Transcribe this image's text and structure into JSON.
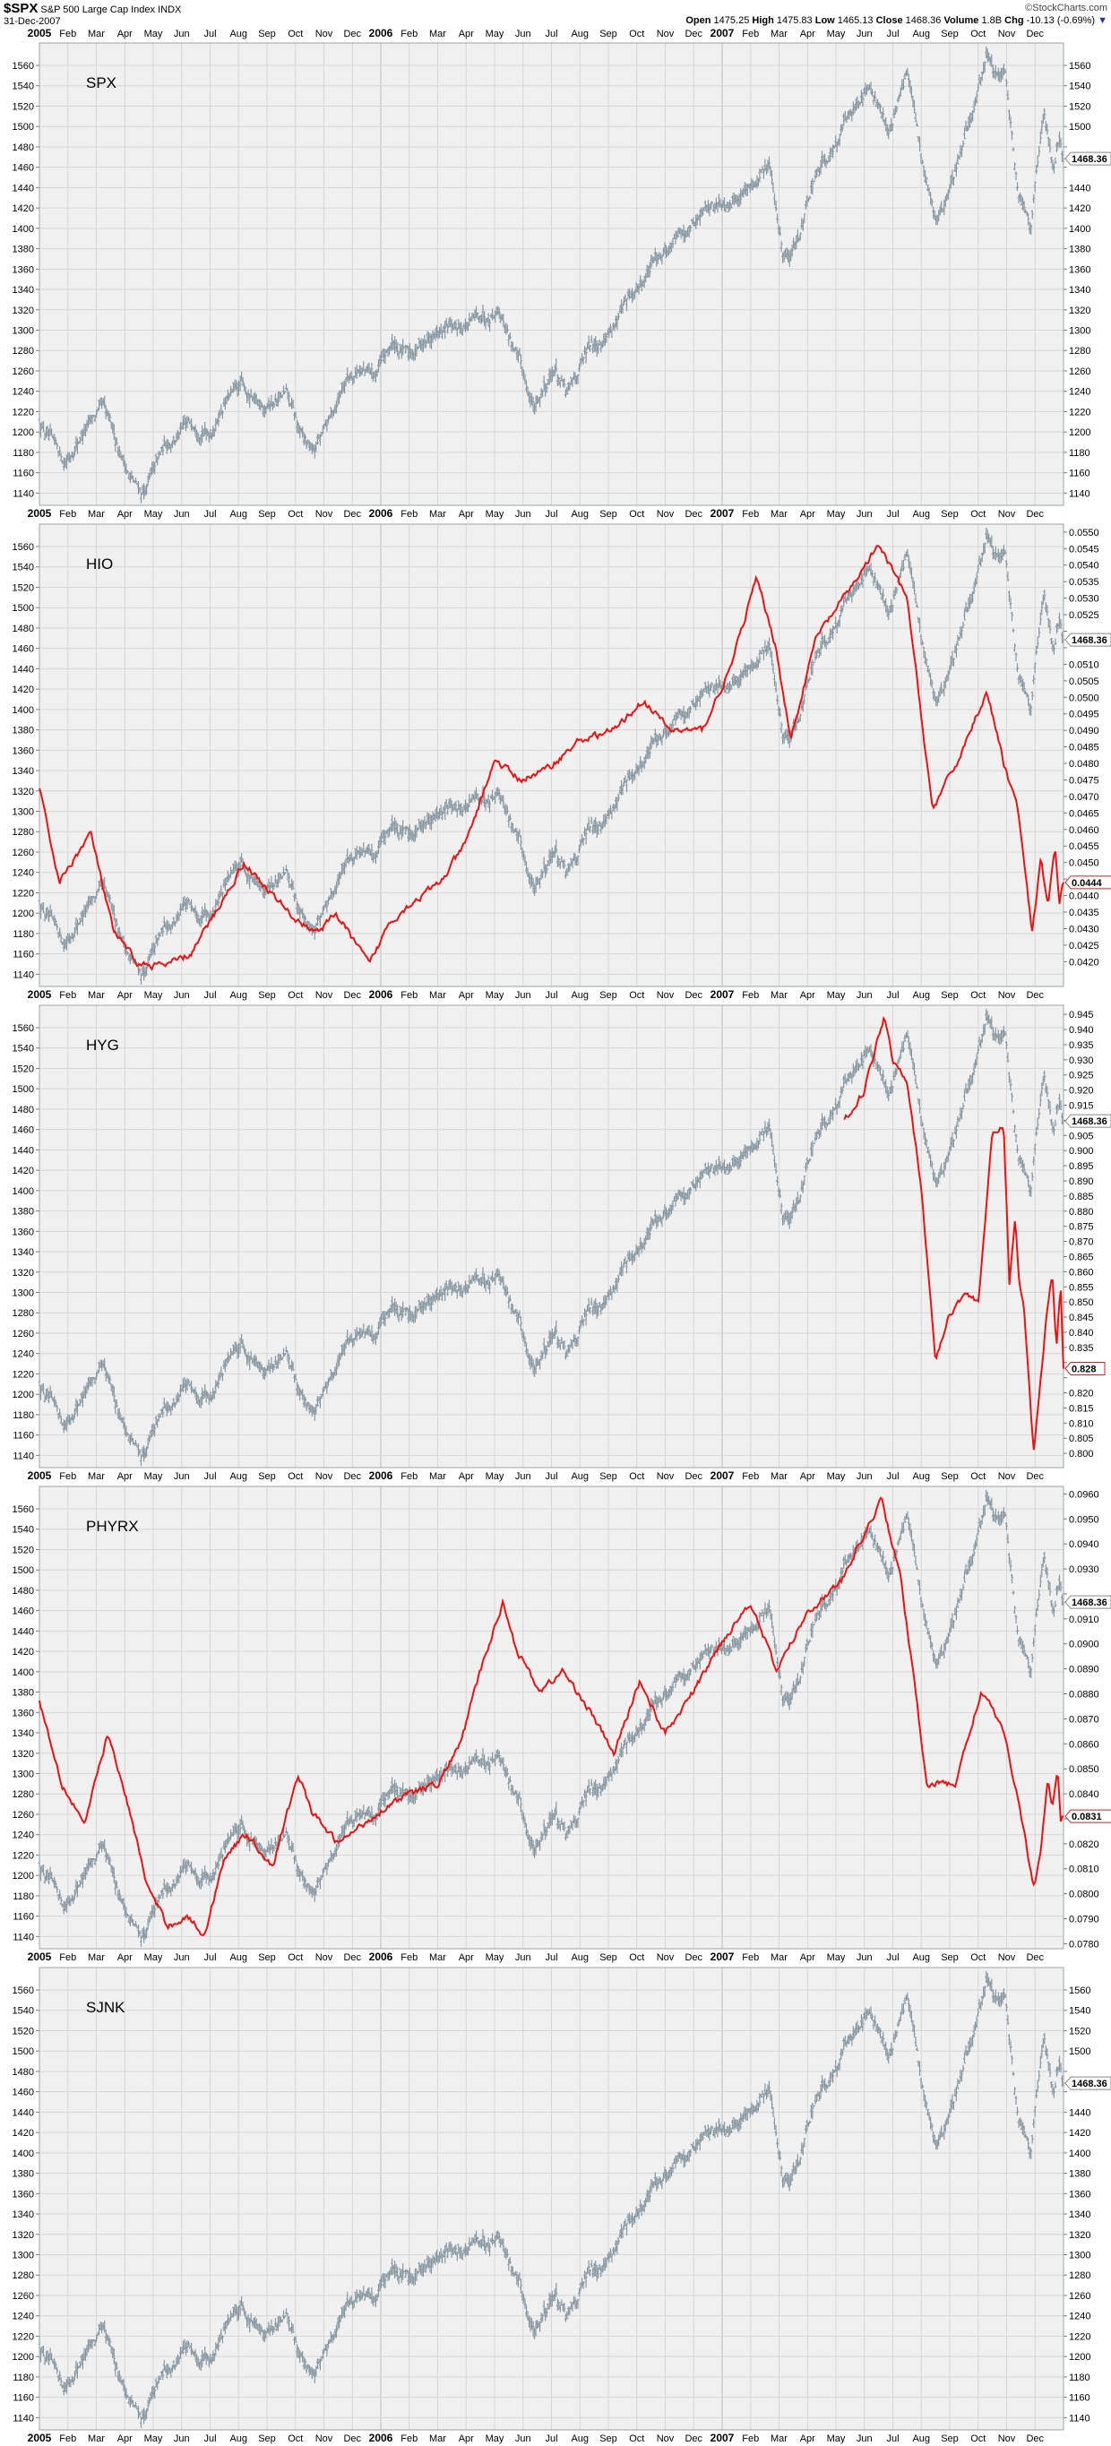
{
  "header": {
    "symbol": "$SPX",
    "name": "S&P 500 Large Cap Index INDX",
    "copyright": "©StockCharts.com",
    "date": "31-Dec-2007",
    "open_label": "Open",
    "open": "1475.25",
    "high_label": "High",
    "high": "1475.83",
    "low_label": "Low",
    "low": "1465.13",
    "close_label": "Close",
    "close": "1468.36",
    "volume_label": "Volume",
    "volume": "1.8B",
    "chg_label": "Chg",
    "chg": "-10.13 (-0.69%)",
    "chg_arrow": "▼"
  },
  "colors": {
    "price": "#8697a1",
    "overlay": "#ee1111",
    "plot_bg": "#f0f0f0",
    "grid": "#d6d6d6",
    "border": "#9aa6aa"
  },
  "chart_data": {
    "type": "line",
    "x_axis_labels": [
      "2005",
      "Feb",
      "Mar",
      "Apr",
      "May",
      "Jun",
      "Jul",
      "Aug",
      "Sep",
      "Oct",
      "Nov",
      "Dec",
      "2006",
      "Feb",
      "Mar",
      "Apr",
      "May",
      "Jun",
      "Jul",
      "Aug",
      "Sep",
      "Oct",
      "Nov",
      "Dec",
      "2007",
      "Feb",
      "Mar",
      "Apr",
      "May",
      "Jun",
      "Jul",
      "Aug",
      "Sep",
      "Oct",
      "Nov",
      "Dec"
    ],
    "x_unit": "months since Jan 2005",
    "price_series": {
      "name": "SPX",
      "last_value": "1468.36",
      "ylim": [
        1128,
        1582
      ],
      "ticks": [
        1140,
        1160,
        1180,
        1200,
        1220,
        1240,
        1260,
        1280,
        1300,
        1320,
        1340,
        1360,
        1380,
        1400,
        1420,
        1440,
        1460,
        1480,
        1500,
        1520,
        1540,
        1560
      ],
      "points": [
        [
          0,
          1212
        ],
        [
          0.5,
          1185
        ],
        [
          0.9,
          1170
        ],
        [
          1.5,
          1200
        ],
        [
          2.2,
          1222
        ],
        [
          2.7,
          1190
        ],
        [
          3.3,
          1150
        ],
        [
          3.65,
          1140
        ],
        [
          4,
          1160
        ],
        [
          4.5,
          1190
        ],
        [
          5,
          1200
        ],
        [
          5.5,
          1210
        ],
        [
          6,
          1200
        ],
        [
          6.5,
          1230
        ],
        [
          7.1,
          1245
        ],
        [
          7.6,
          1225
        ],
        [
          8.2,
          1230
        ],
        [
          8.7,
          1235
        ],
        [
          9.2,
          1195
        ],
        [
          9.6,
          1180
        ],
        [
          10.2,
          1210
        ],
        [
          10.7,
          1250
        ],
        [
          11.2,
          1265
        ],
        [
          11.8,
          1255
        ],
        [
          12.4,
          1285
        ],
        [
          13,
          1275
        ],
        [
          13.5,
          1290
        ],
        [
          14.5,
          1300
        ],
        [
          15.4,
          1310
        ],
        [
          16.15,
          1325
        ],
        [
          16.6,
          1290
        ],
        [
          17.4,
          1223
        ],
        [
          18.1,
          1265
        ],
        [
          18.55,
          1235
        ],
        [
          19.3,
          1280
        ],
        [
          20,
          1300
        ],
        [
          20.95,
          1335
        ],
        [
          21.8,
          1375
        ],
        [
          22.7,
          1400
        ],
        [
          23.5,
          1420
        ],
        [
          24.3,
          1430
        ],
        [
          25.0,
          1445
        ],
        [
          25.65,
          1460
        ],
        [
          26.15,
          1375
        ],
        [
          26.45,
          1380
        ],
        [
          27.2,
          1440
        ],
        [
          28.3,
          1505
        ],
        [
          29.1,
          1540
        ],
        [
          29.85,
          1495
        ],
        [
          30.5,
          1555
        ],
        [
          31.0,
          1470
        ],
        [
          31.5,
          1410
        ],
        [
          31.9,
          1430
        ],
        [
          32.5,
          1480
        ],
        [
          32.95,
          1530
        ],
        [
          33.3,
          1565
        ],
        [
          33.95,
          1545
        ],
        [
          34.4,
          1440
        ],
        [
          34.85,
          1410
        ],
        [
          35.3,
          1515
        ],
        [
          35.65,
          1460
        ],
        [
          35.85,
          1495
        ],
        [
          36,
          1468
        ]
      ]
    },
    "panels": [
      {
        "label": "SPX",
        "overlay": null
      },
      {
        "label": "HIO",
        "overlay": {
          "name": "HIO",
          "last_value": "0.0444",
          "ylim": [
            0.04125,
            0.05524
          ],
          "tick_step": 0.0005,
          "tick_range": [
            0.042,
            0.055
          ],
          "decimals": 4,
          "points": [
            [
              0,
              0.0472
            ],
            [
              0.7,
              0.0444
            ],
            [
              1.8,
              0.0459
            ],
            [
              2.6,
              0.0429
            ],
            [
              3.5,
              0.0419
            ],
            [
              4.5,
              0.0419
            ],
            [
              5.3,
              0.0422
            ],
            [
              6.2,
              0.0435
            ],
            [
              7.2,
              0.045
            ],
            [
              8.1,
              0.0441
            ],
            [
              9.1,
              0.0432
            ],
            [
              9.9,
              0.0429
            ],
            [
              10.4,
              0.0435
            ],
            [
              11.6,
              0.0419
            ],
            [
              12.3,
              0.0432
            ],
            [
              13.1,
              0.0438
            ],
            [
              14.1,
              0.0444
            ],
            [
              15.0,
              0.0456
            ],
            [
              16.0,
              0.0481
            ],
            [
              16.9,
              0.0475
            ],
            [
              17.8,
              0.0478
            ],
            [
              19.0,
              0.0487
            ],
            [
              20.2,
              0.049
            ],
            [
              21.2,
              0.0499
            ],
            [
              22.2,
              0.049
            ],
            [
              23.3,
              0.049
            ],
            [
              24.3,
              0.0509
            ],
            [
              25.2,
              0.0536
            ],
            [
              25.9,
              0.0515
            ],
            [
              26.4,
              0.0487
            ],
            [
              27.3,
              0.0518
            ],
            [
              28.5,
              0.0533
            ],
            [
              29.5,
              0.0546
            ],
            [
              30.5,
              0.053
            ],
            [
              31.4,
              0.0466
            ],
            [
              32.3,
              0.0481
            ],
            [
              33.3,
              0.0502
            ],
            [
              33.9,
              0.048
            ],
            [
              34.4,
              0.0466
            ],
            [
              34.9,
              0.0428
            ],
            [
              35.2,
              0.0451
            ],
            [
              35.45,
              0.0437
            ],
            [
              35.7,
              0.0455
            ],
            [
              35.85,
              0.0437
            ],
            [
              36,
              0.0444
            ]
          ]
        }
      },
      {
        "label": "HYG",
        "overlay": {
          "name": "HYG",
          "last_value": "0.828",
          "ylim": [
            0.7953,
            0.948
          ],
          "tick_step": 0.005,
          "tick_range": [
            0.8,
            0.945
          ],
          "decimals": 3,
          "points": [
            [
              28.3,
              0.91
            ],
            [
              29.0,
              0.92
            ],
            [
              29.7,
              0.945
            ],
            [
              30.0,
              0.93
            ],
            [
              30.5,
              0.924
            ],
            [
              31.0,
              0.887
            ],
            [
              31.5,
              0.831
            ],
            [
              32.0,
              0.846
            ],
            [
              32.5,
              0.853
            ],
            [
              33.0,
              0.85
            ],
            [
              33.5,
              0.905
            ],
            [
              33.9,
              0.908
            ],
            [
              34.1,
              0.856
            ],
            [
              34.3,
              0.878
            ],
            [
              34.45,
              0.856
            ],
            [
              34.6,
              0.849
            ],
            [
              34.95,
              0.8
            ],
            [
              35.2,
              0.825
            ],
            [
              35.45,
              0.85
            ],
            [
              35.6,
              0.86
            ],
            [
              35.75,
              0.836
            ],
            [
              35.9,
              0.856
            ],
            [
              36,
              0.828
            ]
          ]
        }
      },
      {
        "label": "PHYRX",
        "overlay": {
          "name": "PHYRX",
          "last_value": "0.0831",
          "ylim": [
            0.0778,
            0.0963
          ],
          "tick_step": 0.001,
          "tick_range": [
            0.078,
            0.096
          ],
          "decimals": 4,
          "points": [
            [
              0,
              0.0877
            ],
            [
              0.8,
              0.0844
            ],
            [
              1.6,
              0.0828
            ],
            [
              2.4,
              0.0864
            ],
            [
              3.1,
              0.0836
            ],
            [
              3.8,
              0.0803
            ],
            [
              4.5,
              0.0787
            ],
            [
              5.2,
              0.0791
            ],
            [
              5.8,
              0.0783
            ],
            [
              6.5,
              0.0815
            ],
            [
              7.3,
              0.0824
            ],
            [
              8.2,
              0.0811
            ],
            [
              9.1,
              0.0848
            ],
            [
              9.6,
              0.0832
            ],
            [
              10.5,
              0.082
            ],
            [
              11.4,
              0.0828
            ],
            [
              12.3,
              0.0836
            ],
            [
              13.1,
              0.084
            ],
            [
              14.0,
              0.0844
            ],
            [
              14.8,
              0.086
            ],
            [
              15.5,
              0.0889
            ],
            [
              16.3,
              0.0917
            ],
            [
              16.8,
              0.0897
            ],
            [
              17.6,
              0.0881
            ],
            [
              18.4,
              0.0889
            ],
            [
              19.2,
              0.0876
            ],
            [
              20.2,
              0.0856
            ],
            [
              21.1,
              0.0885
            ],
            [
              22.0,
              0.0864
            ],
            [
              23.0,
              0.0881
            ],
            [
              24.0,
              0.0901
            ],
            [
              25.0,
              0.0917
            ],
            [
              25.9,
              0.0889
            ],
            [
              27.0,
              0.0913
            ],
            [
              28.2,
              0.0925
            ],
            [
              29.6,
              0.0958
            ],
            [
              30.3,
              0.0925
            ],
            [
              31.2,
              0.0844
            ],
            [
              32.2,
              0.0844
            ],
            [
              33.1,
              0.0881
            ],
            [
              33.8,
              0.0868
            ],
            [
              34.3,
              0.0844
            ],
            [
              34.95,
              0.0803
            ],
            [
              35.2,
              0.0815
            ],
            [
              35.45,
              0.0847
            ],
            [
              35.6,
              0.0834
            ],
            [
              35.8,
              0.0848
            ],
            [
              35.9,
              0.083
            ],
            [
              36,
              0.0831
            ]
          ]
        }
      },
      {
        "label": "SJNK",
        "overlay": null
      }
    ]
  }
}
